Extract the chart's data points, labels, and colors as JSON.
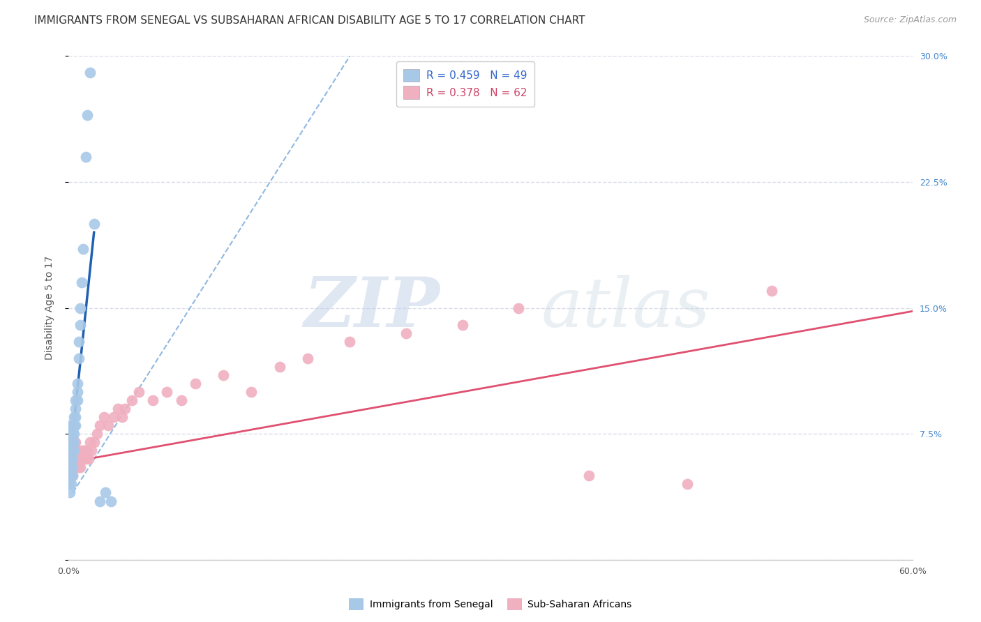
{
  "title": "IMMIGRANTS FROM SENEGAL VS SUBSAHARAN AFRICAN DISABILITY AGE 5 TO 17 CORRELATION CHART",
  "source": "Source: ZipAtlas.com",
  "ylabel": "Disability Age 5 to 17",
  "xlim": [
    0.0,
    0.6
  ],
  "ylim": [
    0.0,
    0.3
  ],
  "xticks": [
    0.0,
    0.1,
    0.2,
    0.3,
    0.4,
    0.5,
    0.6
  ],
  "yticks": [
    0.0,
    0.075,
    0.15,
    0.225,
    0.3
  ],
  "yticklabels_right": [
    "",
    "7.5%",
    "15.0%",
    "22.5%",
    "30.0%"
  ],
  "legend_blue_label": "Immigrants from Senegal",
  "legend_pink_label": "Sub-Saharan Africans",
  "legend_blue_r": "0.459",
  "legend_blue_n": "49",
  "legend_pink_r": "0.378",
  "legend_pink_n": "62",
  "blue_color": "#a8c8e8",
  "blue_line_color": "#2060b0",
  "blue_dashed_color": "#90b8e0",
  "pink_color": "#f0b0c0",
  "pink_line_color": "#e05070",
  "watermark_zip": "ZIP",
  "watermark_atlas": "atlas",
  "grid_color": "#d8dce8",
  "background_color": "#ffffff",
  "title_fontsize": 11,
  "source_fontsize": 9,
  "axis_label_fontsize": 10,
  "tick_fontsize": 9,
  "legend_fontsize": 11,
  "blue_scatter_x": [
    0.001,
    0.001,
    0.001,
    0.001,
    0.001,
    0.001,
    0.001,
    0.001,
    0.001,
    0.002,
    0.002,
    0.002,
    0.002,
    0.002,
    0.002,
    0.002,
    0.002,
    0.003,
    0.003,
    0.003,
    0.003,
    0.003,
    0.003,
    0.003,
    0.004,
    0.004,
    0.004,
    0.004,
    0.004,
    0.005,
    0.005,
    0.005,
    0.005,
    0.006,
    0.006,
    0.006,
    0.007,
    0.007,
    0.008,
    0.008,
    0.009,
    0.01,
    0.012,
    0.013,
    0.015,
    0.018,
    0.022,
    0.026,
    0.03
  ],
  "blue_scatter_y": [
    0.06,
    0.065,
    0.07,
    0.075,
    0.08,
    0.055,
    0.05,
    0.045,
    0.04,
    0.065,
    0.07,
    0.075,
    0.065,
    0.06,
    0.055,
    0.05,
    0.045,
    0.07,
    0.075,
    0.08,
    0.065,
    0.06,
    0.055,
    0.05,
    0.08,
    0.085,
    0.075,
    0.07,
    0.065,
    0.09,
    0.095,
    0.085,
    0.08,
    0.1,
    0.105,
    0.095,
    0.12,
    0.13,
    0.14,
    0.15,
    0.165,
    0.185,
    0.24,
    0.265,
    0.29,
    0.2,
    0.035,
    0.04,
    0.035
  ],
  "pink_scatter_x": [
    0.001,
    0.001,
    0.001,
    0.002,
    0.002,
    0.002,
    0.002,
    0.002,
    0.003,
    0.003,
    0.003,
    0.003,
    0.004,
    0.004,
    0.004,
    0.005,
    0.005,
    0.005,
    0.005,
    0.006,
    0.006,
    0.006,
    0.007,
    0.007,
    0.007,
    0.008,
    0.008,
    0.009,
    0.01,
    0.01,
    0.011,
    0.012,
    0.013,
    0.014,
    0.015,
    0.016,
    0.018,
    0.02,
    0.022,
    0.025,
    0.028,
    0.032,
    0.035,
    0.038,
    0.04,
    0.045,
    0.05,
    0.06,
    0.07,
    0.08,
    0.09,
    0.11,
    0.13,
    0.15,
    0.17,
    0.2,
    0.24,
    0.28,
    0.32,
    0.37,
    0.44,
    0.5
  ],
  "pink_scatter_y": [
    0.065,
    0.07,
    0.06,
    0.065,
    0.07,
    0.06,
    0.055,
    0.05,
    0.065,
    0.06,
    0.055,
    0.05,
    0.065,
    0.06,
    0.055,
    0.07,
    0.065,
    0.06,
    0.055,
    0.065,
    0.06,
    0.055,
    0.065,
    0.06,
    0.055,
    0.06,
    0.055,
    0.06,
    0.065,
    0.06,
    0.065,
    0.06,
    0.065,
    0.06,
    0.07,
    0.065,
    0.07,
    0.075,
    0.08,
    0.085,
    0.08,
    0.085,
    0.09,
    0.085,
    0.09,
    0.095,
    0.1,
    0.095,
    0.1,
    0.095,
    0.105,
    0.11,
    0.1,
    0.115,
    0.12,
    0.13,
    0.135,
    0.14,
    0.15,
    0.05,
    0.045,
    0.16
  ],
  "blue_solid_line_x": [
    0.001,
    0.018
  ],
  "blue_solid_line_y": [
    0.06,
    0.195
  ],
  "blue_dashed_line_x": [
    0.003,
    0.2
  ],
  "blue_dashed_line_y": [
    0.04,
    0.3
  ],
  "pink_solid_line_x": [
    0.0,
    0.6
  ],
  "pink_solid_line_y": [
    0.058,
    0.148
  ]
}
